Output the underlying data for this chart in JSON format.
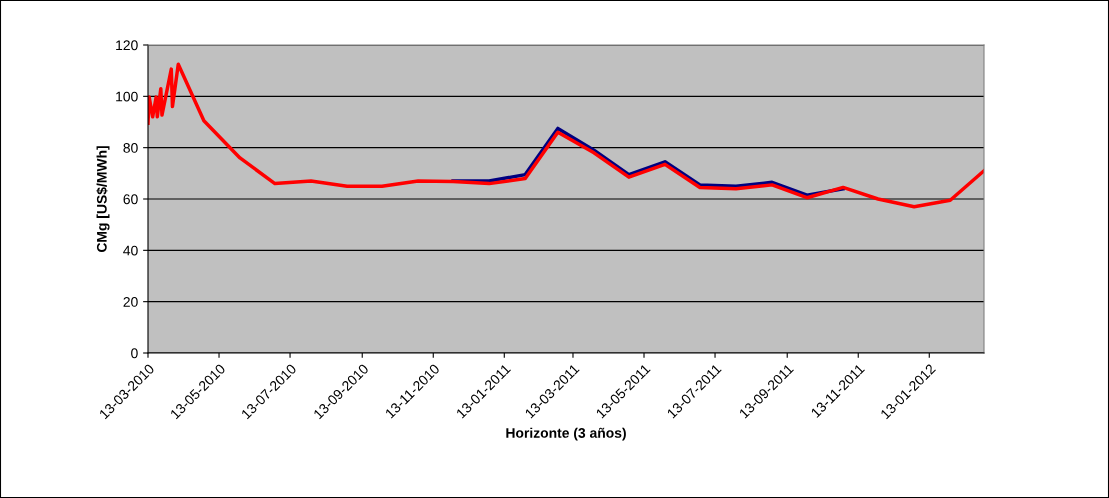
{
  "chart_data": {
    "type": "line",
    "xlabel": "Horizonte (3 años)",
    "ylabel": "CMg [US$/MWh]",
    "x": [
      "2010-03-13",
      "2010-03-14",
      "2010-03-17",
      "2010-03-20",
      "2010-03-21",
      "2010-03-24",
      "2010-03-25",
      "2010-04-02",
      "2010-04-03",
      "2010-04-08",
      "2010-04-30",
      "2010-05-31",
      "2010-06-30",
      "2010-07-31",
      "2010-08-31",
      "2010-09-30",
      "2010-10-31",
      "2010-11-30",
      "2010-12-31",
      "2011-01-31",
      "2011-02-28",
      "2011-03-31",
      "2011-04-30",
      "2011-05-31",
      "2011-06-30",
      "2011-07-31",
      "2011-08-31",
      "2011-09-30",
      "2011-10-31",
      "2011-11-30",
      "2011-12-31",
      "2012-01-31",
      "2012-02-29"
    ],
    "series": [
      {
        "color": "#000080",
        "values": [
          null,
          null,
          null,
          null,
          null,
          null,
          null,
          null,
          null,
          null,
          null,
          null,
          null,
          null,
          null,
          null,
          null,
          67,
          67,
          69.5,
          87.5,
          79,
          69.5,
          74.5,
          65.5,
          65,
          66.5,
          61.5,
          64,
          null,
          null,
          null,
          null
        ]
      },
      {
        "color": "#ff0000",
        "values": [
          89.5,
          99.7,
          92,
          99.7,
          92,
          103,
          92.7,
          110.6,
          96,
          112.5,
          90.5,
          76,
          66,
          67,
          65,
          65,
          67,
          66.8,
          66,
          68,
          86,
          78,
          68.5,
          73.5,
          64.5,
          64,
          65.5,
          60.5,
          64.5,
          60,
          57,
          59.5,
          71
        ]
      }
    ],
    "xlim": [
      "2010-03-13",
      "2012-02-29"
    ],
    "xticks": [
      {
        "value": "2010-03-13",
        "label": "13-03-2010"
      },
      {
        "value": "2010-05-13",
        "label": "13-05-2010"
      },
      {
        "value": "2010-07-13",
        "label": "13-07-2010"
      },
      {
        "value": "2010-09-13",
        "label": "13-09-2010"
      },
      {
        "value": "2010-11-13",
        "label": "13-11-2010"
      },
      {
        "value": "2011-01-13",
        "label": "13-01-2011"
      },
      {
        "value": "2011-03-13",
        "label": "13-03-2011"
      },
      {
        "value": "2011-05-13",
        "label": "13-05-2011"
      },
      {
        "value": "2011-07-13",
        "label": "13-07-2011"
      },
      {
        "value": "2011-09-13",
        "label": "13-09-2011"
      },
      {
        "value": "2011-11-13",
        "label": "13-11-2011"
      },
      {
        "value": "2012-01-13",
        "label": "13-01-2012"
      }
    ],
    "ylim": [
      0,
      120
    ],
    "yticks": [
      0,
      20,
      40,
      60,
      80,
      100,
      120
    ],
    "grid": "y",
    "marker": "none",
    "line_style": "solid"
  }
}
